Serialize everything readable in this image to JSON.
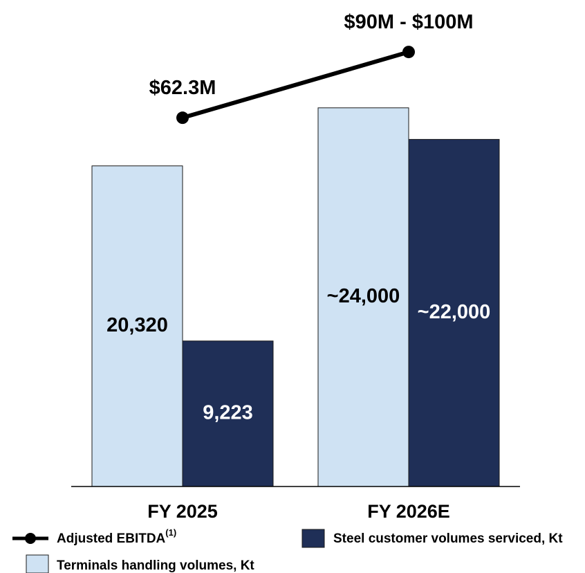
{
  "chart_data": {
    "type": "bar",
    "categories": [
      "FY 2025",
      "FY 2026E"
    ],
    "series": [
      {
        "name": "Terminals handling volumes, Kt",
        "color": "#cfe2f3",
        "values": [
          20320,
          24000
        ],
        "value_labels": [
          "20,320",
          "~24,000"
        ]
      },
      {
        "name": "Steel customer volumes serviced, Kt",
        "color": "#1f2f57",
        "values": [
          9223,
          22000
        ],
        "value_labels": [
          "9,223",
          "~22,000"
        ]
      },
      {
        "name": "Adjusted EBITDA",
        "name_note": "(1)",
        "type": "line",
        "axis": "y2",
        "color": "#000000",
        "values": [
          62.3,
          95
        ],
        "value_labels": [
          "$62.3M",
          "$90M - $100M"
        ]
      }
    ],
    "ylim": [
      0,
      30000
    ],
    "y2lim": [
      -121,
      114.3
    ]
  }
}
